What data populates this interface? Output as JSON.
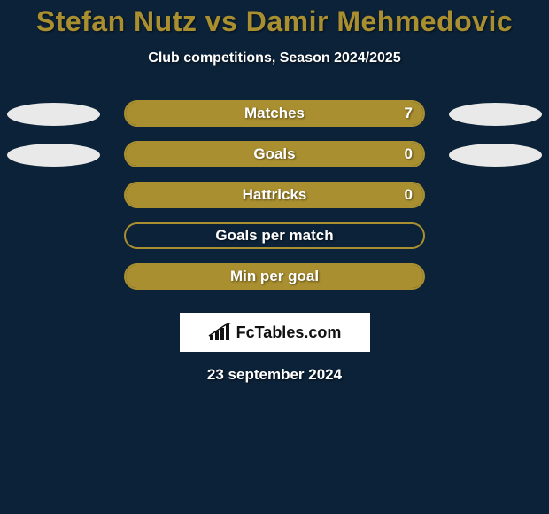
{
  "background_color": "#0c2238",
  "title": {
    "text": "Stefan Nutz vs Damir Mehmedovic",
    "color": "#a98f2f",
    "fontsize": 32
  },
  "subtitle": {
    "text": "Club competitions, Season 2024/2025",
    "color": "#ffffff",
    "fontsize": 16
  },
  "bar_style": {
    "border_color": "#a98f2f",
    "fill_color": "#a98f2f",
    "label_color": "#ffffff",
    "value_color": "#ffffff"
  },
  "ellipse_color": "#e9e9e9",
  "stats": [
    {
      "label": "Matches",
      "value": "7",
      "fill_pct": 100,
      "show_value": true,
      "left_ellipse": true,
      "right_ellipse": true
    },
    {
      "label": "Goals",
      "value": "0",
      "fill_pct": 100,
      "show_value": true,
      "left_ellipse": true,
      "right_ellipse": true
    },
    {
      "label": "Hattricks",
      "value": "0",
      "fill_pct": 100,
      "show_value": true,
      "left_ellipse": false,
      "right_ellipse": false
    },
    {
      "label": "Goals per match",
      "value": "",
      "fill_pct": 0,
      "show_value": false,
      "left_ellipse": false,
      "right_ellipse": false
    },
    {
      "label": "Min per goal",
      "value": "",
      "fill_pct": 100,
      "show_value": false,
      "left_ellipse": false,
      "right_ellipse": false
    }
  ],
  "logo": {
    "background": "#ffffff",
    "text": "FcTables.com",
    "icon_color": "#111111"
  },
  "date": {
    "text": "23 september 2024",
    "color": "#ffffff"
  }
}
